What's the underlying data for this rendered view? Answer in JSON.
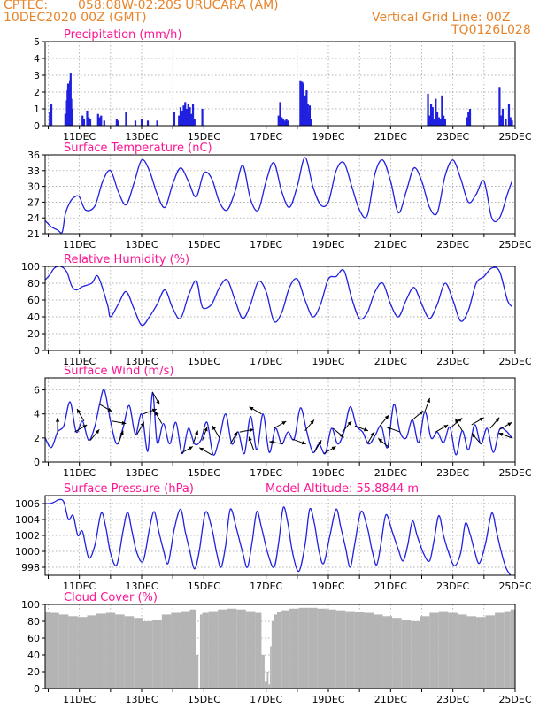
{
  "header": {
    "source": "CPTEC:",
    "location": "058:08W-02:20S  URUCARA (AM)",
    "date": "10DEC2020 00Z (GMT)",
    "grid_note": "Vertical Grid Line: 00Z",
    "code": "TQ0126L028"
  },
  "x_tick_labels": [
    "11DEC",
    "13DEC",
    "15DEC",
    "17DEC",
    "19DEC",
    "21DEC",
    "23DEC",
    "25DEC"
  ],
  "colors": {
    "header": "#e8842a",
    "title": "#ff1493",
    "line": "#2020e0",
    "bar": "#2020e0",
    "cloud": "#b4b4b4",
    "arrow": "#000000"
  },
  "chart_data": [
    {
      "id": "precipitation",
      "type": "bar",
      "title": "Precipitation (mm/h)",
      "ylim": [
        0,
        5
      ],
      "yticks": [
        0,
        1,
        2,
        3,
        4,
        5
      ],
      "x": [
        10.05,
        10.1,
        10.55,
        10.6,
        10.62,
        10.64,
        10.66,
        10.68,
        10.7,
        10.72,
        10.74,
        10.76,
        10.78,
        11.1,
        11.15,
        11.25,
        11.3,
        11.35,
        11.6,
        11.65,
        11.7,
        11.8,
        12.2,
        12.25,
        12.5,
        12.8,
        13.0,
        13.2,
        13.5,
        14.05,
        14.2,
        14.25,
        14.3,
        14.35,
        14.4,
        14.45,
        14.5,
        14.55,
        14.6,
        14.65,
        14.7,
        14.95,
        17.4,
        17.45,
        17.5,
        17.55,
        17.6,
        17.65,
        17.7,
        18.1,
        18.12,
        18.14,
        18.16,
        18.18,
        18.2,
        18.22,
        18.24,
        18.26,
        18.28,
        18.3,
        18.32,
        18.34,
        18.36,
        18.4,
        18.45,
        22.2,
        22.25,
        22.3,
        22.35,
        22.4,
        22.45,
        22.5,
        22.55,
        22.6,
        22.65,
        22.7,
        22.75,
        23.45,
        23.5,
        23.55,
        24.5,
        24.55,
        24.6,
        24.7,
        24.8,
        24.85,
        24.9
      ],
      "values": [
        0.8,
        1.3,
        0.7,
        1.5,
        2.1,
        2.5,
        1.6,
        2.2,
        2.7,
        3.1,
        1.6,
        1.0,
        0.5,
        0.6,
        0.4,
        0.9,
        0.5,
        0.4,
        0.7,
        0.5,
        0.6,
        0.3,
        0.4,
        0.3,
        0.8,
        0.3,
        0.4,
        0.3,
        0.3,
        0.8,
        0.6,
        1.1,
        0.9,
        1.2,
        1.4,
        1.0,
        1.3,
        1.1,
        0.7,
        1.3,
        0.4,
        1.0,
        0.6,
        1.4,
        0.5,
        0.4,
        0.3,
        0.4,
        0.3,
        2.7,
        2.6,
        2.4,
        2.6,
        2.2,
        2.5,
        1.6,
        1.0,
        1.8,
        1.4,
        2.1,
        0.9,
        1.3,
        0.8,
        1.2,
        0.4,
        1.9,
        0.6,
        1.3,
        1.1,
        0.4,
        1.6,
        0.8,
        0.5,
        0.4,
        1.8,
        0.6,
        0.4,
        0.5,
        0.8,
        1.0,
        2.3,
        0.6,
        1.0,
        0.4,
        1.3,
        0.5,
        0.3
      ]
    },
    {
      "id": "temperature",
      "type": "line",
      "title": "Surface Temperature (nC)",
      "ylim": [
        21,
        36
      ],
      "yticks": [
        21,
        24,
        27,
        30,
        33,
        36
      ],
      "x": [
        9.9,
        10.1,
        10.3,
        10.45,
        10.55,
        10.7,
        10.85,
        11.0,
        11.2,
        11.5,
        11.75,
        12.0,
        12.25,
        12.5,
        12.75,
        13.0,
        13.25,
        13.5,
        13.75,
        14.0,
        14.25,
        14.5,
        14.75,
        15.0,
        15.25,
        15.5,
        15.75,
        16.0,
        16.25,
        16.5,
        16.75,
        17.0,
        17.25,
        17.5,
        17.75,
        18.0,
        18.25,
        18.5,
        18.75,
        19.0,
        19.25,
        19.5,
        19.75,
        20.0,
        20.25,
        20.5,
        20.75,
        21.0,
        21.25,
        21.5,
        21.75,
        22.0,
        22.25,
        22.5,
        22.75,
        23.0,
        23.25,
        23.5,
        23.75,
        24.0,
        24.25,
        24.5,
        24.75,
        24.9
      ],
      "values": [
        23.5,
        22.3,
        21.7,
        21.3,
        24.8,
        27.0,
        28.0,
        28.0,
        25.5,
        26.3,
        31.0,
        33.0,
        29.0,
        26.5,
        30.5,
        35.0,
        33.0,
        28.5,
        26.0,
        30.5,
        33.5,
        31.0,
        28.0,
        32.5,
        31.5,
        27.0,
        25.5,
        29.0,
        34.0,
        27.5,
        25.5,
        31.0,
        34.5,
        29.0,
        26.0,
        30.0,
        35.5,
        30.0,
        26.5,
        27.0,
        33.0,
        34.5,
        30.0,
        25.5,
        24.5,
        32.5,
        35.0,
        31.0,
        25.0,
        29.0,
        33.5,
        31.0,
        26.0,
        25.0,
        32.0,
        35.0,
        31.5,
        27.0,
        28.5,
        31.0,
        24.0,
        24.0,
        28.5,
        31.0
      ]
    },
    {
      "id": "humidity",
      "type": "line",
      "title": "Relative Humidity (%)",
      "ylim": [
        0,
        100
      ],
      "yticks": [
        0,
        20,
        40,
        60,
        80,
        100
      ],
      "x": [
        9.9,
        10.05,
        10.2,
        10.4,
        10.6,
        10.75,
        10.9,
        11.1,
        11.4,
        11.6,
        11.9,
        12.0,
        12.25,
        12.5,
        12.75,
        13.0,
        13.25,
        13.5,
        13.75,
        14.0,
        14.25,
        14.5,
        14.75,
        14.9,
        15.0,
        15.25,
        15.5,
        15.75,
        16.0,
        16.25,
        16.5,
        16.75,
        17.0,
        17.25,
        17.5,
        17.75,
        18.0,
        18.25,
        18.5,
        18.75,
        19.0,
        19.25,
        19.5,
        19.75,
        20.0,
        20.25,
        20.5,
        20.75,
        21.0,
        21.25,
        21.5,
        21.75,
        22.0,
        22.25,
        22.5,
        22.75,
        23.0,
        23.25,
        23.5,
        23.75,
        24.0,
        24.25,
        24.5,
        24.75,
        24.9
      ],
      "values": [
        84,
        90,
        98,
        100,
        93,
        77,
        72,
        76,
        80,
        88,
        55,
        40,
        55,
        70,
        50,
        30,
        40,
        55,
        72,
        50,
        38,
        65,
        83,
        58,
        50,
        55,
        75,
        84,
        60,
        38,
        55,
        82,
        70,
        35,
        45,
        75,
        85,
        60,
        40,
        55,
        85,
        88,
        95,
        62,
        38,
        45,
        70,
        80,
        55,
        40,
        60,
        75,
        55,
        38,
        55,
        80,
        60,
        35,
        48,
        80,
        88,
        98,
        94,
        60,
        52
      ]
    },
    {
      "id": "wind",
      "type": "line",
      "title": "Surface Wind (m/s)",
      "ylim": [
        0,
        7
      ],
      "yticks": [
        0,
        2,
        4,
        6
      ],
      "x": [
        9.9,
        10.1,
        10.3,
        10.5,
        10.7,
        10.9,
        11.1,
        11.3,
        11.5,
        11.65,
        11.8,
        12.0,
        12.2,
        12.4,
        12.6,
        12.8,
        13.0,
        13.2,
        13.35,
        13.5,
        13.7,
        13.9,
        14.1,
        14.3,
        14.5,
        14.7,
        14.9,
        15.1,
        15.3,
        15.5,
        15.7,
        15.9,
        16.1,
        16.3,
        16.5,
        16.7,
        16.9,
        17.1,
        17.3,
        17.5,
        17.7,
        17.9,
        18.1,
        18.3,
        18.5,
        18.7,
        18.9,
        19.1,
        19.3,
        19.5,
        19.7,
        19.9,
        20.1,
        20.3,
        20.5,
        20.7,
        20.9,
        21.1,
        21.3,
        21.5,
        21.7,
        21.9,
        22.1,
        22.3,
        22.5,
        22.7,
        22.9,
        23.1,
        23.3,
        23.5,
        23.7,
        23.9,
        24.1,
        24.3,
        24.5,
        24.7,
        24.9
      ],
      "values": [
        2.0,
        1.2,
        2.5,
        3.0,
        5.0,
        2.5,
        3.4,
        1.8,
        3.0,
        4.8,
        6.0,
        3.4,
        1.5,
        2.8,
        4.7,
        2.3,
        4.0,
        0.9,
        5.8,
        1.6,
        3.2,
        1.5,
        3.3,
        0.7,
        2.8,
        1.5,
        1.8,
        3.3,
        0.6,
        2.0,
        4.0,
        1.5,
        2.5,
        0.7,
        3.8,
        1.0,
        4.0,
        0.8,
        2.8,
        1.5,
        2.5,
        1.9,
        4.5,
        2.6,
        0.8,
        1.5,
        0.7,
        2.8,
        1.5,
        2.5,
        4.6,
        3.0,
        2.5,
        1.5,
        2.2,
        3.0,
        1.2,
        4.8,
        2.5,
        2.0,
        3.5,
        1.6,
        4.2,
        2.0,
        2.5,
        1.6,
        2.9,
        0.6,
        2.6,
        1.0,
        3.1,
        1.5,
        2.8,
        0.8,
        2.7,
        2.6,
        2.0
      ],
      "arrows_x": [
        10.3,
        10.85,
        11.15,
        11.35,
        11.65,
        12.05,
        12.25,
        12.85,
        13.05,
        13.35,
        13.65,
        14.25,
        14.65,
        14.95,
        15.25,
        15.5,
        15.85,
        16.15,
        16.6,
        16.85,
        17.25,
        17.55,
        17.85,
        18.25,
        18.55,
        18.85,
        19.15,
        19.45,
        19.85,
        20.25,
        20.65,
        20.95,
        21.3,
        21.7,
        22.1,
        22.45,
        22.95,
        23.3,
        23.6,
        23.9,
        24.2,
        24.5,
        24.9
      ],
      "arrows_dir": [
        0,
        60,
        330,
        40,
        120,
        100,
        20,
        30,
        70,
        150,
        330,
        60,
        20,
        20,
        300,
        330,
        30,
        80,
        340,
        300,
        60,
        280,
        110,
        40,
        30,
        60,
        130,
        40,
        110,
        30,
        40,
        310,
        290,
        50,
        20,
        60,
        50,
        330,
        60,
        320,
        40,
        60,
        290
      ]
    },
    {
      "id": "pressure",
      "type": "line",
      "title": "Surface Pressure (hPa)",
      "annotation": "Model Altitude: 55.8844 m",
      "ylim": [
        997,
        1007
      ],
      "yticks": [
        998,
        1000,
        1002,
        1004,
        1006
      ],
      "x": [
        9.9,
        10.05,
        10.2,
        10.35,
        10.5,
        10.65,
        10.8,
        10.95,
        11.1,
        11.3,
        11.5,
        11.7,
        11.85,
        12.0,
        12.2,
        12.4,
        12.55,
        12.7,
        12.85,
        13.05,
        13.25,
        13.4,
        13.55,
        13.7,
        13.85,
        14.05,
        14.25,
        14.4,
        14.55,
        14.7,
        14.85,
        15.05,
        15.25,
        15.4,
        15.55,
        15.7,
        15.85,
        16.05,
        16.25,
        16.4,
        16.55,
        16.7,
        16.85,
        17.05,
        17.25,
        17.4,
        17.55,
        17.7,
        17.85,
        18.05,
        18.25,
        18.4,
        18.55,
        18.7,
        18.85,
        19.05,
        19.25,
        19.4,
        19.55,
        19.7,
        19.85,
        20.05,
        20.25,
        20.4,
        20.55,
        20.7,
        20.85,
        21.05,
        21.25,
        21.4,
        21.55,
        21.7,
        21.85,
        22.05,
        22.25,
        22.4,
        22.55,
        22.7,
        22.85,
        23.05,
        23.25,
        23.4,
        23.55,
        23.7,
        23.85,
        24.05,
        24.25,
        24.4,
        24.55,
        24.7,
        24.85
      ],
      "values": [
        1006.0,
        1006.0,
        1006.2,
        1006.5,
        1006.2,
        1004.0,
        1004.5,
        1002.0,
        1002.5,
        999.2,
        1000.8,
        1004.8,
        1003.0,
        999.8,
        998.3,
        1002.5,
        1004.9,
        1002.3,
        999.8,
        998.8,
        1002.8,
        1005.0,
        1002.5,
        1000.2,
        998.5,
        1002.8,
        1005.3,
        1002.5,
        1000.0,
        997.8,
        1000.0,
        1004.9,
        1003.0,
        1000.0,
        998.0,
        1000.8,
        1005.3,
        1002.8,
        999.8,
        998.0,
        1001.2,
        1005.0,
        1003.0,
        999.8,
        998.0,
        1001.0,
        1005.5,
        1003.5,
        999.8,
        997.5,
        1000.8,
        1005.3,
        1003.5,
        1000.0,
        998.5,
        1002.0,
        1005.3,
        1003.0,
        1000.5,
        998.0,
        1001.0,
        1005.0,
        1003.0,
        1000.2,
        998.3,
        1001.2,
        1004.6,
        1002.5,
        1000.2,
        998.8,
        1000.8,
        1003.8,
        1002.0,
        999.8,
        998.8,
        1001.5,
        1004.5,
        1002.0,
        1000.0,
        998.2,
        999.8,
        1003.5,
        1002.2,
        1000.0,
        998.5,
        1001.0,
        1004.8,
        1002.5,
        1000.0,
        998.0,
        997.0
      ]
    },
    {
      "id": "cloud",
      "type": "area",
      "title": "Cloud Cover (%)",
      "ylim": [
        0,
        100
      ],
      "yticks": [
        0,
        20,
        40,
        60,
        80,
        100
      ],
      "x": [
        9.9,
        10.2,
        10.5,
        10.8,
        11.1,
        11.4,
        11.7,
        12.0,
        12.3,
        12.6,
        12.9,
        13.2,
        13.5,
        13.8,
        14.1,
        14.4,
        14.7,
        14.8,
        14.85,
        14.9,
        15.0,
        15.3,
        15.6,
        15.9,
        16.2,
        16.5,
        16.8,
        16.9,
        17.0,
        17.05,
        17.1,
        17.15,
        17.2,
        17.3,
        17.4,
        17.6,
        17.9,
        18.2,
        18.5,
        18.8,
        19.1,
        19.4,
        19.7,
        20.0,
        20.3,
        20.6,
        20.9,
        21.2,
        21.5,
        21.8,
        22.1,
        22.4,
        22.7,
        23.0,
        23.3,
        23.6,
        23.9,
        24.2,
        24.5,
        24.8,
        24.9
      ],
      "values": [
        91,
        90,
        88,
        86,
        85,
        87,
        89,
        90,
        88,
        86,
        84,
        80,
        82,
        88,
        90,
        92,
        94,
        40,
        0,
        88,
        90,
        92,
        94,
        95,
        94,
        92,
        90,
        40,
        8,
        20,
        5,
        50,
        80,
        88,
        91,
        93,
        95,
        96,
        96,
        95,
        94,
        93,
        92,
        91,
        90,
        88,
        86,
        84,
        82,
        80,
        86,
        90,
        92,
        90,
        88,
        86,
        85,
        87,
        90,
        92,
        94
      ]
    }
  ]
}
